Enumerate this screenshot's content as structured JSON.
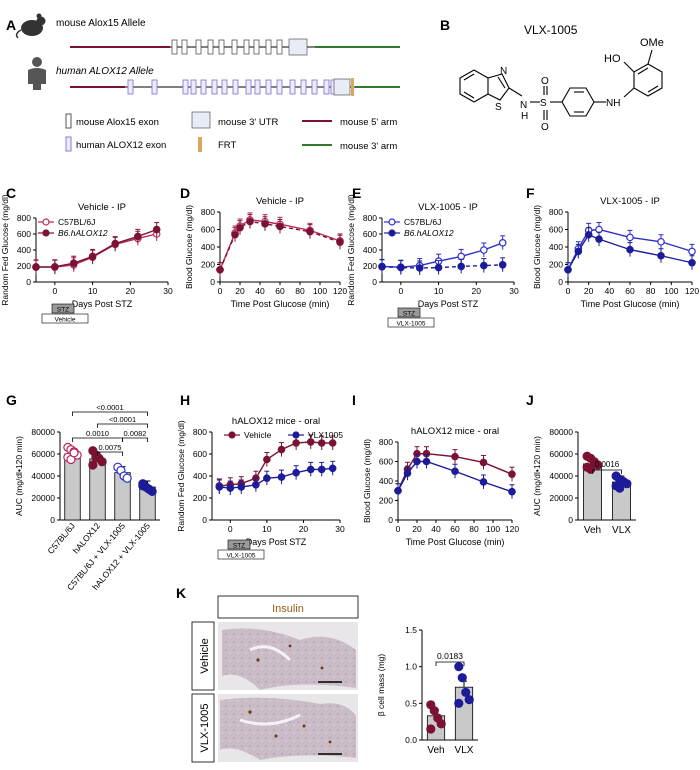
{
  "colors": {
    "maroon": "#7b1232",
    "pink": "#b8265d",
    "blue": "#2d2dcc",
    "navy": "#1c1c9a",
    "lavender": "#8f7bd2",
    "lavender_fill": "#ecebff",
    "utr_fill": "#e7ecf6",
    "frt": "#d9a85a",
    "green": "#2f7a2f",
    "bar_gray": "#c9c9c9",
    "insulin_text": "#9a5a14"
  },
  "panel_labels": {
    "A": "A",
    "B": "B",
    "C": "C",
    "D": "D",
    "E": "E",
    "F": "F",
    "G": "G",
    "H": "H",
    "I": "I",
    "J": "J",
    "K": "K"
  },
  "panel_a": {
    "mouse_label": "mouse Alox15 Allele",
    "human_label": "human ALOX12 Allele",
    "legend": {
      "mouse_exon": "mouse Alox15 exon",
      "human_exon": "human ALOX12 exon",
      "utr": "mouse 3' UTR",
      "frt": "FRT",
      "arm5": "mouse 5' arm",
      "arm3": "mouse 3' arm"
    }
  },
  "panel_b": {
    "title": "VLX-1005",
    "atoms": {
      "OH": "HO",
      "OMe": "OMe",
      "S_ring": "S",
      "N_ring": "N",
      "NH_sulfonamide": "H",
      "N_sulfonamide": "N",
      "S": "S",
      "O1": "O",
      "O2": "O",
      "NH": "NH",
      "NH_H": "H"
    }
  },
  "chart_data": [
    {
      "id": "C",
      "type": "line",
      "title": "Vehicle - IP",
      "xlabel": "Days Post STZ",
      "ylabel": "Random Fed Glucose (mg/dl)",
      "xlim": [
        -5,
        30
      ],
      "ylim": [
        0,
        800
      ],
      "xticks": [
        "0",
        "10",
        "20",
        "30"
      ],
      "yticks": [
        "0",
        "200",
        "400",
        "600",
        "800"
      ],
      "treatment_boxes": [
        "STZ",
        "Vehicle"
      ],
      "legend": [
        "C57BL/6J",
        "B6.hALOX12"
      ],
      "series": [
        {
          "name": "C57BL/6J",
          "x": [
            -5,
            0,
            5,
            10,
            16,
            22,
            27
          ],
          "y": [
            190,
            185,
            215,
            310,
            470,
            545,
            600
          ]
        },
        {
          "name": "B6.hALOX12",
          "x": [
            -5,
            0,
            5,
            10,
            16,
            22,
            27
          ],
          "y": [
            185,
            190,
            235,
            320,
            480,
            570,
            655
          ]
        }
      ]
    },
    {
      "id": "D",
      "type": "line",
      "title": "Vehicle - IP",
      "xlabel": "Time Post Glucose (min)",
      "ylabel": "Blood Glucose (mg/dl)",
      "xlim": [
        0,
        120
      ],
      "ylim": [
        0,
        800
      ],
      "xticks": [
        "0",
        "20",
        "40",
        "60",
        "80",
        "100",
        "120"
      ],
      "yticks": [
        "0",
        "200",
        "400",
        "600",
        "800"
      ],
      "series": [
        {
          "name": "C57BL/6J",
          "x": [
            0,
            15,
            20,
            30,
            45,
            60,
            90,
            120
          ],
          "y": [
            140,
            560,
            640,
            710,
            690,
            660,
            590,
            470
          ]
        },
        {
          "name": "B6.hALOX12",
          "x": [
            0,
            15,
            20,
            30,
            45,
            60,
            90,
            120
          ],
          "y": [
            140,
            540,
            620,
            690,
            665,
            635,
            575,
            455
          ]
        }
      ]
    },
    {
      "id": "E",
      "type": "line",
      "title": "VLX-1005 - IP",
      "xlabel": "Days Post STZ",
      "ylabel": "Random Fed Glucose (mg/dl)",
      "xlim": [
        -5,
        30
      ],
      "ylim": [
        0,
        800
      ],
      "xticks": [
        "0",
        "10",
        "20",
        "30"
      ],
      "yticks": [
        "0",
        "200",
        "400",
        "600",
        "800"
      ],
      "treatment_boxes": [
        "STZ",
        "VLX-1005"
      ],
      "legend": [
        "C57BL/6J",
        "B6.hALOX12"
      ],
      "series": [
        {
          "name": "C57BL/6J",
          "x": [
            -5,
            0,
            5,
            10,
            16,
            22,
            27
          ],
          "y": [
            195,
            185,
            205,
            260,
            320,
            400,
            490
          ]
        },
        {
          "name": "B6.hALOX12",
          "x": [
            -5,
            0,
            5,
            10,
            16,
            22,
            27
          ],
          "y": [
            190,
            180,
            175,
            180,
            195,
            205,
            215
          ]
        }
      ]
    },
    {
      "id": "F",
      "type": "line",
      "title": "VLX-1005 - IP",
      "xlabel": "Time Post Glucose (min)",
      "ylabel": "Blood Glucose (mg/dl)",
      "xlim": [
        0,
        120
      ],
      "ylim": [
        0,
        800
      ],
      "xticks": [
        "0",
        "20",
        "40",
        "60",
        "80",
        "100",
        "120"
      ],
      "yticks": [
        "0",
        "200",
        "400",
        "600",
        "800"
      ],
      "series": [
        {
          "name": "C57BL/6J",
          "x": [
            0,
            10,
            20,
            30,
            60,
            90,
            120
          ],
          "y": [
            140,
            380,
            590,
            600,
            510,
            460,
            350
          ]
        },
        {
          "name": "B6.hALOX12",
          "x": [
            0,
            10,
            20,
            30,
            60,
            90,
            120
          ],
          "y": [
            140,
            350,
            540,
            490,
            370,
            300,
            220
          ]
        }
      ]
    },
    {
      "id": "G",
      "type": "bar",
      "ylabel": "AUC (mg/dl•120 min)",
      "ylim": [
        0,
        80000
      ],
      "yticks": [
        "0",
        "20000",
        "40000",
        "60000",
        "80000"
      ],
      "categories": [
        "C57BL/6J",
        "hALOX12",
        "C57BL/6J + VLX-1005",
        "hALOX12 + VLX-1005"
      ],
      "values": [
        60000,
        55500,
        43000,
        30000
      ],
      "points": [
        [
          66000,
          64000,
          62000,
          59000,
          57000,
          55000,
          61000
        ],
        [
          63000,
          59000,
          56000,
          53000,
          50000,
          57000
        ],
        [
          48000,
          45000,
          40000,
          38000
        ],
        [
          33000,
          30000,
          28000,
          26000,
          31000
        ]
      ],
      "comparisons": [
        "<0.0001",
        "<0.0001",
        "0.0010",
        "0.0082",
        "0.0075"
      ]
    },
    {
      "id": "H",
      "type": "line",
      "title": "hALOX12 mice - oral",
      "xlabel": "Days Post STZ",
      "ylabel": "Random Fed Glucose (mg/dl)",
      "xlim": [
        -5,
        30
      ],
      "ylim": [
        0,
        800
      ],
      "xticks": [
        "0",
        "10",
        "20",
        "30"
      ],
      "yticks": [
        "0",
        "200",
        "400",
        "600",
        "800"
      ],
      "treatment_boxes": [
        "STZ",
        "VLX-1005"
      ],
      "legend": [
        "Vehicle",
        "VLX1005"
      ],
      "series": [
        {
          "name": "Vehicle",
          "x": [
            -3,
            0,
            3,
            7,
            10,
            14,
            18,
            22,
            25,
            28
          ],
          "y": [
            310,
            320,
            330,
            380,
            550,
            640,
            700,
            710,
            700,
            700
          ]
        },
        {
          "name": "VLX1005",
          "x": [
            -3,
            0,
            3,
            7,
            10,
            14,
            18,
            22,
            25,
            28
          ],
          "y": [
            300,
            290,
            300,
            320,
            380,
            390,
            430,
            460,
            460,
            470
          ]
        }
      ]
    },
    {
      "id": "I",
      "type": "line",
      "title": "hALOX12 mice - oral",
      "xlabel": "Time Post Glucose (min)",
      "ylabel": "Blood Glucose (mg/dl)",
      "xlim": [
        0,
        120
      ],
      "ylim": [
        0,
        800
      ],
      "xticks": [
        "0",
        "20",
        "40",
        "60",
        "80",
        "100",
        "120"
      ],
      "yticks": [
        "0",
        "200",
        "400",
        "600",
        "800"
      ],
      "series": [
        {
          "name": "Vehicle",
          "x": [
            0,
            10,
            20,
            30,
            60,
            90,
            120
          ],
          "y": [
            300,
            520,
            680,
            680,
            650,
            590,
            470
          ]
        },
        {
          "name": "VLX1005",
          "x": [
            0,
            10,
            20,
            30,
            60,
            90,
            120
          ],
          "y": [
            300,
            480,
            600,
            600,
            500,
            390,
            290
          ]
        }
      ]
    },
    {
      "id": "J",
      "type": "bar",
      "ylabel": "AUC (mg/dl•120 min)",
      "ylim": [
        0,
        80000
      ],
      "yticks": [
        "0",
        "20000",
        "40000",
        "60000",
        "80000"
      ],
      "categories": [
        "Veh",
        "VLX"
      ],
      "values": [
        51000,
        34500
      ],
      "points": [
        [
          58000,
          56000,
          53000,
          50000,
          48000,
          46000
        ],
        [
          40000,
          37000,
          35000,
          33000,
          31000,
          29000
        ]
      ],
      "comparisons": [
        "0.0016"
      ]
    },
    {
      "id": "K",
      "type": "bar",
      "ylabel": "β cell mass (mg)",
      "ylim": [
        0,
        1.5
      ],
      "yticks": [
        "0.0",
        "0.5",
        "1.0",
        "1.5"
      ],
      "categories": [
        "Veh",
        "VLX"
      ],
      "values": [
        0.33,
        0.72
      ],
      "points": [
        [
          0.48,
          0.4,
          0.3,
          0.22,
          0.15
        ],
        [
          1.0,
          0.85,
          0.65,
          0.55,
          0.5
        ]
      ],
      "comparisons": [
        "0.0183"
      ]
    }
  ],
  "panel_k_images": {
    "header": "Insulin",
    "row1": "Vehicle",
    "row2": "VLX-1005"
  }
}
